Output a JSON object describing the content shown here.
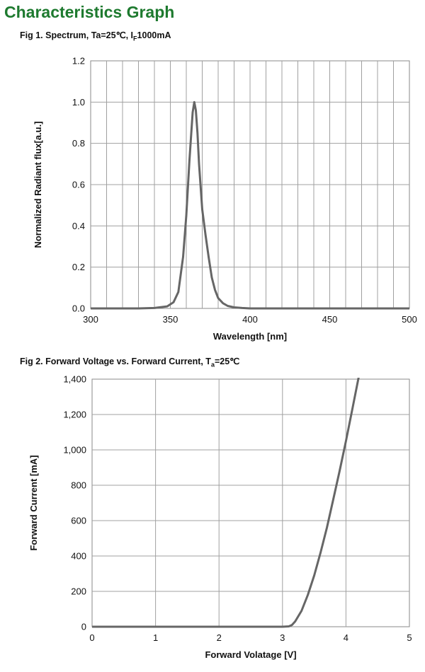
{
  "page": {
    "heading": "Characteristics Graph"
  },
  "figures": [
    {
      "title_pre": "Fig 1. Spectrum, Ta=25℃, I",
      "title_sub": "F",
      "title_post": "1000mA"
    },
    {
      "title_pre": "Fig 2. Forward Voltage vs. Forward Current, T",
      "title_sub": "a",
      "title_post": "=25℃"
    }
  ],
  "chart_data": [
    {
      "type": "line",
      "xlabel": "Wavelength [nm]",
      "ylabel": "Normalized Radiant flux[a.u.]",
      "xlim": [
        300,
        500
      ],
      "ylim": [
        0,
        1.2
      ],
      "x_ticks": [
        "300",
        "350",
        "400",
        "450",
        "500"
      ],
      "y_ticks": [
        "0.0",
        "0.2",
        "0.4",
        "0.6",
        "0.8",
        "1.0",
        "1.2"
      ],
      "grid": true,
      "line_color": "#666666",
      "series": [
        {
          "x": [
            300,
            330,
            340,
            348,
            352,
            355,
            358,
            360,
            362,
            364,
            365,
            366,
            367,
            368,
            370,
            372,
            374,
            376,
            378,
            380,
            383,
            386,
            390,
            395,
            400,
            420,
            450,
            500
          ],
          "y": [
            0.0,
            0.0,
            0.002,
            0.01,
            0.03,
            0.08,
            0.25,
            0.45,
            0.72,
            0.95,
            1.0,
            0.96,
            0.85,
            0.7,
            0.48,
            0.36,
            0.25,
            0.15,
            0.09,
            0.05,
            0.025,
            0.012,
            0.005,
            0.002,
            0.0,
            0.0,
            0.0,
            0.0
          ]
        }
      ]
    },
    {
      "type": "line",
      "xlabel": "Forward  Volatage [V]",
      "ylabel": "Forward Current [mA]",
      "xlim": [
        0,
        5
      ],
      "ylim": [
        0,
        1400
      ],
      "x_ticks": [
        "0",
        "1",
        "2",
        "3",
        "4",
        "5"
      ],
      "y_ticks": [
        "0",
        "200",
        "400",
        "600",
        "800",
        "1,000",
        "1,200",
        "1,400"
      ],
      "grid": true,
      "line_color": "#666666",
      "series": [
        {
          "x": [
            0,
            1,
            2,
            3.0,
            3.1,
            3.15,
            3.2,
            3.3,
            3.4,
            3.5,
            3.6,
            3.7,
            3.8,
            3.9,
            4.0,
            4.1,
            4.2
          ],
          "y": [
            0,
            0,
            0,
            0,
            2,
            10,
            30,
            90,
            180,
            290,
            420,
            560,
            720,
            880,
            1050,
            1230,
            1410
          ]
        }
      ]
    }
  ]
}
